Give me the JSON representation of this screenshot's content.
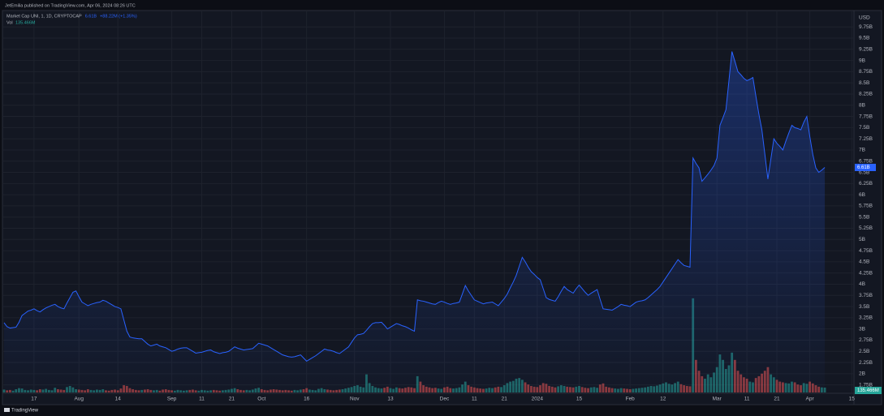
{
  "header": "JetEmilia published on TradingView.com, Apr 06, 2024 08:26 UTC",
  "footer": "TradingView",
  "chart_data": {
    "type": "area",
    "currency": "USD",
    "line_color": "#2962ff",
    "up_color": "#26a69a",
    "down_color": "#ef5350",
    "grid": true,
    "ylim": [
      1580000000.0,
      10080000000.0
    ],
    "yticks": [
      {
        "value": 9750000000.0,
        "label": "9.75B"
      },
      {
        "value": 9500000000.0,
        "label": "9.5B"
      },
      {
        "value": 9250000000.0,
        "label": "9.25B"
      },
      {
        "value": 9000000000.0,
        "label": "9B"
      },
      {
        "value": 8750000000.0,
        "label": "8.75B"
      },
      {
        "value": 8500000000.0,
        "label": "8.5B"
      },
      {
        "value": 8250000000.0,
        "label": "8.25B"
      },
      {
        "value": 8000000000.0,
        "label": "8B"
      },
      {
        "value": 7750000000.0,
        "label": "7.75B"
      },
      {
        "value": 7500000000.0,
        "label": "7.5B"
      },
      {
        "value": 7250000000.0,
        "label": "7.25B"
      },
      {
        "value": 7000000000.0,
        "label": "7B"
      },
      {
        "value": 6750000000.0,
        "label": "6.75B"
      },
      {
        "value": 6500000000.0,
        "label": "6.5B"
      },
      {
        "value": 6250000000.0,
        "label": "6.25B"
      },
      {
        "value": 6000000000.0,
        "label": "6B"
      },
      {
        "value": 5750000000.0,
        "label": "5.75B"
      },
      {
        "value": 5500000000.0,
        "label": "5.5B"
      },
      {
        "value": 5250000000.0,
        "label": "5.25B"
      },
      {
        "value": 5000000000.0,
        "label": "5B"
      },
      {
        "value": 4750000000.0,
        "label": "4.75B"
      },
      {
        "value": 4500000000.0,
        "label": "4.5B"
      },
      {
        "value": 4250000000.0,
        "label": "4.25B"
      },
      {
        "value": 4000000000.0,
        "label": "4B"
      },
      {
        "value": 3750000000.0,
        "label": "3.75B"
      },
      {
        "value": 3500000000.0,
        "label": "3.5B"
      },
      {
        "value": 3250000000.0,
        "label": "3.25B"
      },
      {
        "value": 3000000000.0,
        "label": "3B"
      },
      {
        "value": 2750000000.0,
        "label": "2.75B"
      },
      {
        "value": 2500000000.0,
        "label": "2.5B"
      },
      {
        "value": 2250000000.0,
        "label": "2.25B"
      },
      {
        "value": 2000000000.0,
        "label": "2B"
      },
      {
        "value": 1750000000.0,
        "label": "1.75B"
      }
    ],
    "y2lim": [
      0,
      3000000000.0
    ],
    "categories": [
      null,
      null,
      null,
      null,
      null,
      null,
      null,
      null,
      null,
      null,
      "17",
      null,
      null,
      null,
      null,
      null,
      null,
      null,
      null,
      null,
      null,
      null,
      null,
      null,
      null,
      "Aug",
      null,
      null,
      null,
      null,
      null,
      null,
      null,
      null,
      null,
      null,
      null,
      null,
      "14",
      null,
      null,
      null,
      null,
      null,
      null,
      null,
      null,
      null,
      null,
      null,
      null,
      null,
      null,
      null,
      null,
      null,
      "Sep",
      null,
      null,
      null,
      null,
      null,
      null,
      null,
      null,
      null,
      "11",
      null,
      null,
      null,
      null,
      null,
      null,
      null,
      null,
      null,
      "21",
      null,
      null,
      null,
      null,
      null,
      null,
      null,
      null,
      null,
      "Oct",
      null,
      null,
      null,
      null,
      null,
      null,
      null,
      null,
      null,
      null,
      null,
      null,
      null,
      null,
      "16",
      null,
      null,
      null,
      null,
      null,
      null,
      null,
      null,
      null,
      null,
      null,
      null,
      null,
      null,
      null,
      "Nov",
      null,
      null,
      null,
      null,
      null,
      null,
      null,
      null,
      null,
      null,
      null,
      "13",
      null,
      null,
      null,
      null,
      null,
      null,
      null,
      null,
      null,
      null,
      null,
      null,
      null,
      null,
      null,
      null,
      null,
      "Dec",
      null,
      null,
      null,
      null,
      null,
      null,
      null,
      null,
      null,
      "11",
      null,
      null,
      null,
      null,
      null,
      null,
      null,
      null,
      null,
      "21",
      null,
      null,
      null,
      null,
      null,
      null,
      null,
      null,
      null,
      null,
      "2024",
      null,
      null,
      null,
      null,
      null,
      null,
      null,
      null,
      null,
      null,
      null,
      null,
      null,
      "15",
      null,
      null,
      null,
      null,
      null,
      null,
      null,
      null,
      null,
      null,
      null,
      null,
      null,
      null,
      null,
      null,
      "Feb",
      null,
      null,
      null,
      null,
      null,
      null,
      null,
      null,
      null,
      null,
      "12",
      null,
      null,
      null,
      null,
      null,
      null,
      null,
      null,
      null,
      null,
      null,
      null,
      null,
      null,
      null,
      null,
      null,
      "Mar",
      null,
      null,
      null,
      null,
      null,
      null,
      null,
      null,
      null,
      "11",
      null,
      null,
      null,
      null,
      null,
      null,
      null,
      null,
      null,
      "21",
      null,
      null,
      null,
      null,
      null,
      null,
      null,
      null,
      null,
      null,
      "Apr",
      null,
      null,
      null,
      null,
      null,
      null,
      null,
      null,
      null,
      null,
      null,
      null,
      null,
      "15"
    ],
    "series": [
      {
        "name": "Market Cap UNI, 1, 1D, CRYPTOCAP",
        "last_label": "6.61B",
        "change_label": "+88.22M (+1.35%)",
        "values": [
          3140000000.0,
          3050000000.0,
          3020000000.0,
          3030000000.0,
          3040000000.0,
          3150000000.0,
          3300000000.0,
          3350000000.0,
          3400000000.0,
          3420000000.0,
          3450000000.0,
          3410000000.0,
          3380000000.0,
          3430000000.0,
          3470000000.0,
          3500000000.0,
          3530000000.0,
          3550000000.0,
          3500000000.0,
          3470000000.0,
          3450000000.0,
          3580000000.0,
          3700000000.0,
          3820000000.0,
          3850000000.0,
          3720000000.0,
          3600000000.0,
          3560000000.0,
          3520000000.0,
          3550000000.0,
          3570000000.0,
          3590000000.0,
          3600000000.0,
          3640000000.0,
          3620000000.0,
          3580000000.0,
          3540000000.0,
          3500000000.0,
          3480000000.0,
          3450000000.0,
          3200000000.0,
          2950000000.0,
          2820000000.0,
          2800000000.0,
          2790000000.0,
          2780000000.0,
          2780000000.0,
          2720000000.0,
          2660000000.0,
          2620000000.0,
          2640000000.0,
          2660000000.0,
          2620000000.0,
          2600000000.0,
          2580000000.0,
          2540000000.0,
          2500000000.0,
          2520000000.0,
          2550000000.0,
          2570000000.0,
          2580000000.0,
          2580000000.0,
          2540000000.0,
          2500000000.0,
          2460000000.0,
          2470000000.0,
          2480000000.0,
          2500000000.0,
          2520000000.0,
          2530000000.0,
          2490000000.0,
          2470000000.0,
          2450000000.0,
          2470000000.0,
          2480000000.0,
          2500000000.0,
          2550000000.0,
          2600000000.0,
          2570000000.0,
          2550000000.0,
          2530000000.0,
          2540000000.0,
          2550000000.0,
          2560000000.0,
          2620000000.0,
          2680000000.0,
          2660000000.0,
          2640000000.0,
          2620000000.0,
          2580000000.0,
          2540000000.0,
          2500000000.0,
          2460000000.0,
          2420000000.0,
          2400000000.0,
          2380000000.0,
          2370000000.0,
          2380000000.0,
          2400000000.0,
          2420000000.0,
          2350000000.0,
          2280000000.0,
          2320000000.0,
          2360000000.0,
          2400000000.0,
          2450000000.0,
          2500000000.0,
          2550000000.0,
          2530000000.0,
          2520000000.0,
          2500000000.0,
          2470000000.0,
          2450000000.0,
          2500000000.0,
          2550000000.0,
          2600000000.0,
          2700000000.0,
          2800000000.0,
          2870000000.0,
          2880000000.0,
          2900000000.0,
          2970000000.0,
          3050000000.0,
          3120000000.0,
          3140000000.0,
          3140000000.0,
          3150000000.0,
          3080000000.0,
          3000000000.0,
          3040000000.0,
          3080000000.0,
          3120000000.0,
          3100000000.0,
          3070000000.0,
          3050000000.0,
          3020000000.0,
          2980000000.0,
          2950000000.0,
          3650000000.0,
          3630000000.0,
          3620000000.0,
          3600000000.0,
          3580000000.0,
          3560000000.0,
          3550000000.0,
          3590000000.0,
          3620000000.0,
          3600000000.0,
          3570000000.0,
          3550000000.0,
          3570000000.0,
          3580000000.0,
          3600000000.0,
          3780000000.0,
          3970000000.0,
          3850000000.0,
          3750000000.0,
          3650000000.0,
          3620000000.0,
          3590000000.0,
          3560000000.0,
          3580000000.0,
          3590000000.0,
          3600000000.0,
          3560000000.0,
          3520000000.0,
          3600000000.0,
          3680000000.0,
          3780000000.0,
          3920000000.0,
          4050000000.0,
          4200000000.0,
          4400000000.0,
          4600000000.0,
          4500000000.0,
          4380000000.0,
          4280000000.0,
          4220000000.0,
          4150000000.0,
          4100000000.0,
          3900000000.0,
          3700000000.0,
          3660000000.0,
          3640000000.0,
          3620000000.0,
          3720000000.0,
          3840000000.0,
          3950000000.0,
          3880000000.0,
          3840000000.0,
          3800000000.0,
          3900000000.0,
          3980000000.0,
          3900000000.0,
          3820000000.0,
          3750000000.0,
          3800000000.0,
          3840000000.0,
          3880000000.0,
          3660000000.0,
          3450000000.0,
          3440000000.0,
          3430000000.0,
          3420000000.0,
          3460000000.0,
          3500000000.0,
          3550000000.0,
          3530000000.0,
          3520000000.0,
          3500000000.0,
          3550000000.0,
          3600000000.0,
          3620000000.0,
          3630000000.0,
          3650000000.0,
          3700000000.0,
          3760000000.0,
          3820000000.0,
          3880000000.0,
          3950000000.0,
          4050000000.0,
          4150000000.0,
          4250000000.0,
          4350000000.0,
          4450000000.0,
          4550000000.0,
          4480000000.0,
          4420000000.0,
          4400000000.0,
          4380000000.0,
          6820000000.0,
          6700000000.0,
          6600000000.0,
          6300000000.0,
          6380000000.0,
          6460000000.0,
          6550000000.0,
          6650000000.0,
          6820000000.0,
          7550000000.0,
          7720000000.0,
          7900000000.0,
          8550000000.0,
          9200000000.0,
          8980000000.0,
          8750000000.0,
          8680000000.0,
          8600000000.0,
          8550000000.0,
          8580000000.0,
          8620000000.0,
          8200000000.0,
          7800000000.0,
          7450000000.0,
          6900000000.0,
          6350000000.0,
          6800000000.0,
          7250000000.0,
          7150000000.0,
          7080000000.0,
          7000000000.0,
          7200000000.0,
          7380000000.0,
          7550000000.0,
          7500000000.0,
          7480000000.0,
          7450000000.0,
          7620000000.0,
          7750000000.0,
          7300000000.0,
          6900000000.0,
          6600000000.0,
          6500000000.0,
          6550000000.0,
          6610000000.0,
          null,
          null,
          null,
          null,
          null,
          null,
          null,
          null,
          null
        ]
      },
      {
        "name": "Vol",
        "axis": "y2",
        "last_label": "135.466M",
        "values": [
          80000000.0,
          60000000.0,
          70000000.0,
          50000000.0,
          90000000.0,
          120000000.0,
          110000000.0,
          70000000.0,
          60000000.0,
          80000000.0,
          70000000.0,
          60000000.0,
          90000000.0,
          80000000.0,
          100000000.0,
          70000000.0,
          60000000.0,
          130000000.0,
          90000000.0,
          80000000.0,
          70000000.0,
          150000000.0,
          180000000.0,
          140000000.0,
          90000000.0,
          80000000.0,
          70000000.0,
          60000000.0,
          90000000.0,
          70000000.0,
          60000000.0,
          80000000.0,
          70000000.0,
          90000000.0,
          60000000.0,
          50000000.0,
          70000000.0,
          80000000.0,
          60000000.0,
          110000000.0,
          200000000.0,
          180000000.0,
          120000000.0,
          90000000.0,
          70000000.0,
          60000000.0,
          70000000.0,
          80000000.0,
          90000000.0,
          70000000.0,
          60000000.0,
          70000000.0,
          50000000.0,
          80000000.0,
          90000000.0,
          70000000.0,
          60000000.0,
          50000000.0,
          70000000.0,
          60000000.0,
          50000000.0,
          60000000.0,
          70000000.0,
          80000000.0,
          60000000.0,
          50000000.0,
          70000000.0,
          60000000.0,
          50000000.0,
          60000000.0,
          70000000.0,
          60000000.0,
          50000000.0,
          60000000.0,
          70000000.0,
          80000000.0,
          100000000.0,
          120000000.0,
          90000000.0,
          70000000.0,
          60000000.0,
          70000000.0,
          60000000.0,
          80000000.0,
          110000000.0,
          130000000.0,
          90000000.0,
          70000000.0,
          60000000.0,
          80000000.0,
          90000000.0,
          80000000.0,
          70000000.0,
          60000000.0,
          70000000.0,
          60000000.0,
          50000000.0,
          70000000.0,
          60000000.0,
          80000000.0,
          90000000.0,
          120000000.0,
          80000000.0,
          70000000.0,
          60000000.0,
          100000000.0,
          120000000.0,
          90000000.0,
          80000000.0,
          70000000.0,
          60000000.0,
          70000000.0,
          80000000.0,
          90000000.0,
          110000000.0,
          130000000.0,
          150000000.0,
          180000000.0,
          200000000.0,
          160000000.0,
          140000000.0,
          500000000.0,
          260000000.0,
          180000000.0,
          140000000.0,
          120000000.0,
          110000000.0,
          130000000.0,
          160000000.0,
          120000000.0,
          100000000.0,
          140000000.0,
          120000000.0,
          110000000.0,
          130000000.0,
          150000000.0,
          140000000.0,
          120000000.0,
          450000000.0,
          300000000.0,
          200000000.0,
          160000000.0,
          140000000.0,
          120000000.0,
          130000000.0,
          110000000.0,
          100000000.0,
          140000000.0,
          160000000.0,
          120000000.0,
          110000000.0,
          120000000.0,
          140000000.0,
          220000000.0,
          300000000.0,
          200000000.0,
          160000000.0,
          140000000.0,
          120000000.0,
          110000000.0,
          100000000.0,
          110000000.0,
          130000000.0,
          120000000.0,
          140000000.0,
          160000000.0,
          150000000.0,
          200000000.0,
          260000000.0,
          300000000.0,
          320000000.0,
          380000000.0,
          400000000.0,
          350000000.0,
          280000000.0,
          220000000.0,
          180000000.0,
          160000000.0,
          150000000.0,
          200000000.0,
          260000000.0,
          240000000.0,
          180000000.0,
          160000000.0,
          140000000.0,
          170000000.0,
          200000000.0,
          180000000.0,
          160000000.0,
          150000000.0,
          140000000.0,
          160000000.0,
          180000000.0,
          150000000.0,
          130000000.0,
          120000000.0,
          140000000.0,
          150000000.0,
          130000000.0,
          220000000.0,
          250000000.0,
          160000000.0,
          140000000.0,
          120000000.0,
          110000000.0,
          100000000.0,
          120000000.0,
          110000000.0,
          100000000.0,
          90000000.0,
          100000000.0,
          110000000.0,
          120000000.0,
          130000000.0,
          140000000.0,
          160000000.0,
          180000000.0,
          170000000.0,
          190000000.0,
          220000000.0,
          250000000.0,
          280000000.0,
          240000000.0,
          220000000.0,
          260000000.0,
          300000000.0,
          230000000.0,
          200000000.0,
          180000000.0,
          170000000.0,
          2600000000.0,
          900000000.0,
          600000000.0,
          450000000.0,
          380000000.0,
          500000000.0,
          420000000.0,
          550000000.0,
          700000000.0,
          1050000000.0,
          900000000.0,
          650000000.0,
          750000000.0,
          1100000000.0,
          900000000.0,
          600000000.0,
          500000000.0,
          420000000.0,
          380000000.0,
          300000000.0,
          280000000.0,
          400000000.0,
          450000000.0,
          520000000.0,
          600000000.0,
          700000000.0,
          500000000.0,
          420000000.0,
          350000000.0,
          300000000.0,
          280000000.0,
          260000000.0,
          250000000.0,
          300000000.0,
          280000000.0,
          220000000.0,
          200000000.0,
          260000000.0,
          240000000.0,
          300000000.0,
          250000000.0,
          200000000.0,
          160000000.0,
          140000000.0,
          135466000,
          null,
          null,
          null,
          null,
          null,
          null,
          null,
          null,
          null
        ]
      }
    ]
  }
}
